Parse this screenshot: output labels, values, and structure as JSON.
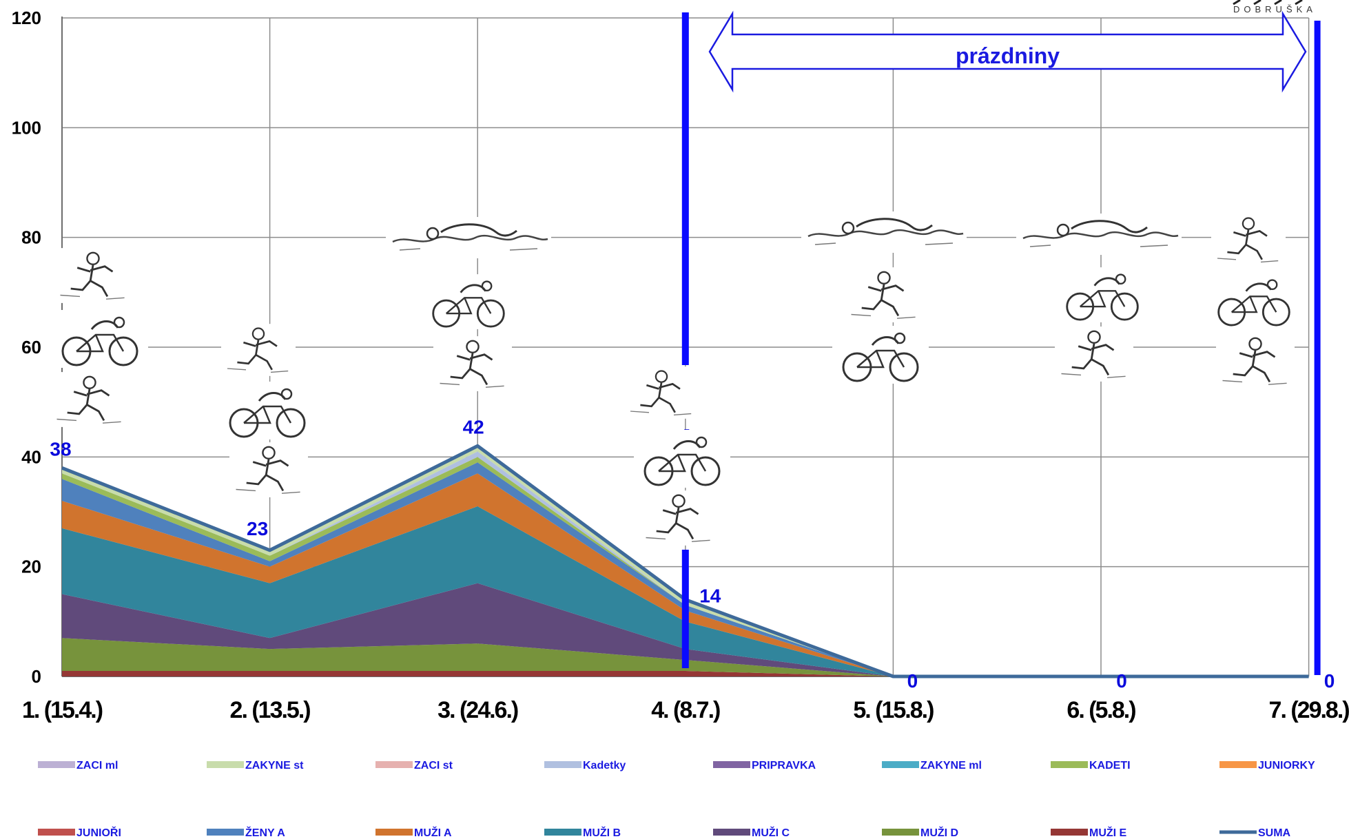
{
  "logo": {
    "subtitle": "DOBRUŠKA"
  },
  "chart_data": {
    "type": "area",
    "stacked": true,
    "categories": [
      "1. (15.4.)",
      "2. (13.5.)",
      "3. (24.6.)",
      "4. (8.7.)",
      "5. (15.8.)",
      "6. (5.8.)",
      "7. (29.8.)"
    ],
    "ylim": [
      0,
      120
    ],
    "yticks": [
      0,
      20,
      40,
      60,
      80,
      100,
      120
    ],
    "grid": true,
    "legend_position": "bottom",
    "series": [
      {
        "name": "MUŽI E",
        "color": "#953735",
        "values": [
          1,
          1,
          1,
          1,
          0,
          null,
          null
        ]
      },
      {
        "name": "MUŽI D",
        "color": "#77933c",
        "values": [
          6,
          4,
          5,
          2,
          0,
          null,
          null
        ]
      },
      {
        "name": "MUŽI C",
        "color": "#604a7b",
        "values": [
          8,
          2,
          11,
          2,
          0,
          null,
          null
        ]
      },
      {
        "name": "MUŽI B",
        "color": "#31859c",
        "values": [
          12,
          10,
          14,
          5,
          0,
          null,
          null
        ]
      },
      {
        "name": "MUŽI A",
        "color": "#d0742e",
        "values": [
          5,
          3,
          6,
          2,
          0,
          null,
          null
        ]
      },
      {
        "name": "ŽENY A",
        "color": "#4f81bd",
        "values": [
          4,
          1,
          2,
          1,
          0,
          null,
          null
        ]
      },
      {
        "name": "JUNIOŘI",
        "color": "#c0504d",
        "values": [
          0,
          0,
          0,
          0,
          0,
          null,
          null
        ]
      },
      {
        "name": "JUNIORKY",
        "color": "#f79646",
        "values": [
          0,
          0,
          0,
          0,
          0,
          null,
          null
        ]
      },
      {
        "name": "KADETI",
        "color": "#9bbb59",
        "values": [
          1,
          1,
          1,
          0,
          0,
          null,
          null
        ]
      },
      {
        "name": "ZAKYNE ml",
        "color": "#4bacc6",
        "values": [
          0,
          0,
          0,
          0,
          0,
          null,
          null
        ]
      },
      {
        "name": "PRIPRAVKA",
        "color": "#8064a2",
        "values": [
          0,
          0,
          0,
          0,
          0,
          null,
          null
        ]
      },
      {
        "name": "Kadetky",
        "color": "#b0c0e0",
        "values": [
          0,
          0,
          1,
          0,
          0,
          null,
          null
        ]
      },
      {
        "name": "ZACI st",
        "color": "#e6b1af",
        "values": [
          0,
          0,
          0,
          0,
          0,
          null,
          null
        ]
      },
      {
        "name": "ZAKYNE st",
        "color": "#c8dcab",
        "values": [
          1,
          1,
          1,
          1,
          0,
          null,
          null
        ]
      },
      {
        "name": "ZACI ml",
        "color": "#bcb0d4",
        "values": [
          0,
          0,
          0,
          0,
          0,
          null,
          null
        ]
      }
    ],
    "total": {
      "name": "SUMA",
      "color": "#3e6a9a",
      "values": [
        38,
        23,
        42,
        14,
        0,
        0,
        0
      ]
    },
    "data_labels": [
      "38",
      "23",
      "42",
      "14",
      "0",
      "0",
      "0"
    ],
    "legend_order": [
      "ZACI ml",
      "ZAKYNE st",
      "ZACI st",
      "Kadetky",
      "PRIPRAVKA",
      "ZAKYNE ml",
      "KADETI",
      "JUNIORKY",
      "JUNIOŘI",
      "ŽENY A",
      "MUŽI A",
      "MUŽI B",
      "MUŽI C",
      "MUŽI D",
      "MUŽI E",
      "SUMA"
    ],
    "annotations": {
      "holiday_label": "prázdniny",
      "dash_marks": [
        "-",
        "-"
      ]
    }
  }
}
